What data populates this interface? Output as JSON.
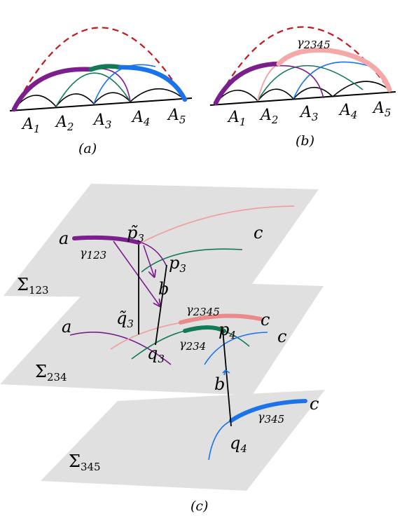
{
  "colors": {
    "purple": "#7b1f8c",
    "green": "#127a55",
    "blue": "#1a73e8",
    "salmon": "#f0a0a0",
    "red_dashed": "#c8161d",
    "plane": "#e0e0e0",
    "black": "#000000"
  },
  "panel_a": {
    "caption": "(a)",
    "points": [
      "A1",
      "A2",
      "A3",
      "A4",
      "A5"
    ]
  },
  "panel_b": {
    "caption": "(b)",
    "points": [
      "A1",
      "A2",
      "A3",
      "A4",
      "A5"
    ],
    "geodesic_label": "γ2345"
  },
  "panel_c": {
    "caption": "(c)",
    "planes": [
      "Σ123",
      "Σ234",
      "Σ345"
    ],
    "geodesics": [
      "γ123",
      "γ2345",
      "γ234",
      "γ345"
    ],
    "points": {
      "a_top": "a",
      "c_top": "c",
      "p3_tilde": "p̃3",
      "p3": "p3",
      "b_top": "b",
      "a_mid": "a",
      "q3_tilde": "q̃3",
      "q3": "q3",
      "p4": "p4",
      "c_mid1": "c",
      "c_mid2": "c",
      "b_bottom": "b",
      "q4": "q4",
      "c_bottom": "c"
    }
  }
}
